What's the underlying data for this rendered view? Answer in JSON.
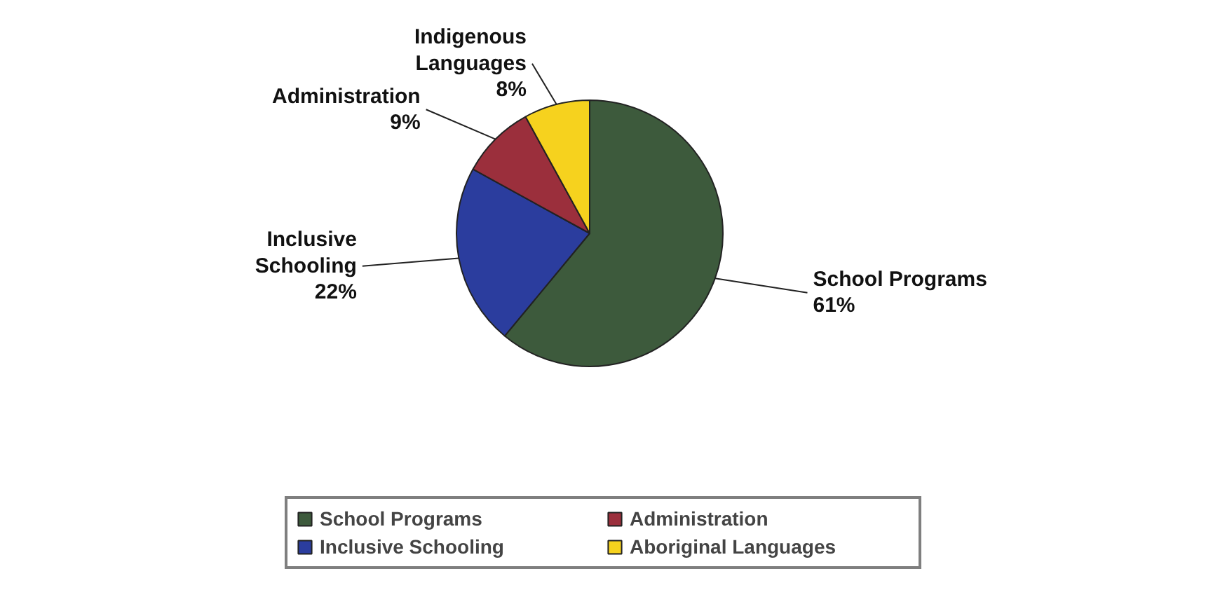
{
  "chart_data": {
    "type": "pie",
    "categories": [
      "School Programs",
      "Inclusive Schooling",
      "Administration",
      "Aboriginal Languages"
    ],
    "values": [
      61,
      22,
      9,
      8
    ],
    "colors": [
      "#3d5a3c",
      "#2b3d9e",
      "#9b2f3c",
      "#f6d21e"
    ],
    "value_labels": [
      "School Programs\n61%",
      "Inclusive\nSchooling\n22%",
      "Administration\n9%",
      "Indigenous\nLanguages\n8%"
    ],
    "legend": "bottom"
  }
}
